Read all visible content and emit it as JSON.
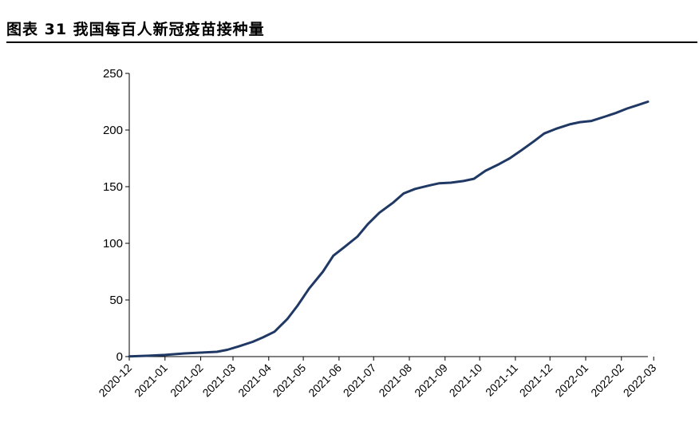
{
  "header": {
    "title": "图表 31  我国每百人新冠疫苗接种量"
  },
  "chart_data": {
    "type": "line",
    "title": "图表 31  我国每百人新冠疫苗接种量",
    "xlabel": "",
    "ylabel": "",
    "ylim": [
      0,
      250
    ],
    "yticks": [
      0,
      50,
      100,
      150,
      200,
      250
    ],
    "xticks": [
      "2020-12",
      "2021-01",
      "2021-02",
      "2021-03",
      "2021-04",
      "2021-05",
      "2021-06",
      "2021-07",
      "2021-08",
      "2021-09",
      "2021-10",
      "2021-11",
      "2021-12",
      "2022-01",
      "2022-02",
      "2022-03"
    ],
    "grid": false,
    "legend": "none",
    "color": "#1f3864",
    "series": [
      {
        "x": [
          "2020-12-15",
          "2021-01-01",
          "2021-01-15",
          "2021-02-01",
          "2021-02-15",
          "2021-03-01",
          "2021-03-10",
          "2021-03-20",
          "2021-04-01",
          "2021-04-10",
          "2021-04-20",
          "2021-05-01",
          "2021-05-10",
          "2021-05-20",
          "2021-06-01",
          "2021-06-10",
          "2021-06-20",
          "2021-07-01",
          "2021-07-10",
          "2021-07-20",
          "2021-08-01",
          "2021-08-10",
          "2021-08-20",
          "2021-09-01",
          "2021-09-10",
          "2021-09-20",
          "2021-10-01",
          "2021-10-10",
          "2021-10-20",
          "2021-11-01",
          "2021-11-10",
          "2021-11-20",
          "2021-12-01",
          "2021-12-10",
          "2021-12-20",
          "2022-01-01",
          "2022-01-10",
          "2022-01-20",
          "2022-02-01",
          "2022-02-10",
          "2022-02-20",
          "2022-03-01",
          "2022-03-10"
        ],
        "y": [
          0.2,
          0.8,
          1.5,
          2.8,
          3.5,
          4.2,
          6,
          9,
          13,
          17,
          22,
          33,
          45,
          60,
          75,
          89,
          97,
          106,
          117,
          127,
          136,
          144,
          148,
          151,
          153,
          153.5,
          155,
          157,
          164,
          170,
          175,
          182,
          190,
          197,
          201,
          205,
          207,
          208,
          212,
          215,
          219,
          222,
          225
        ]
      }
    ]
  }
}
